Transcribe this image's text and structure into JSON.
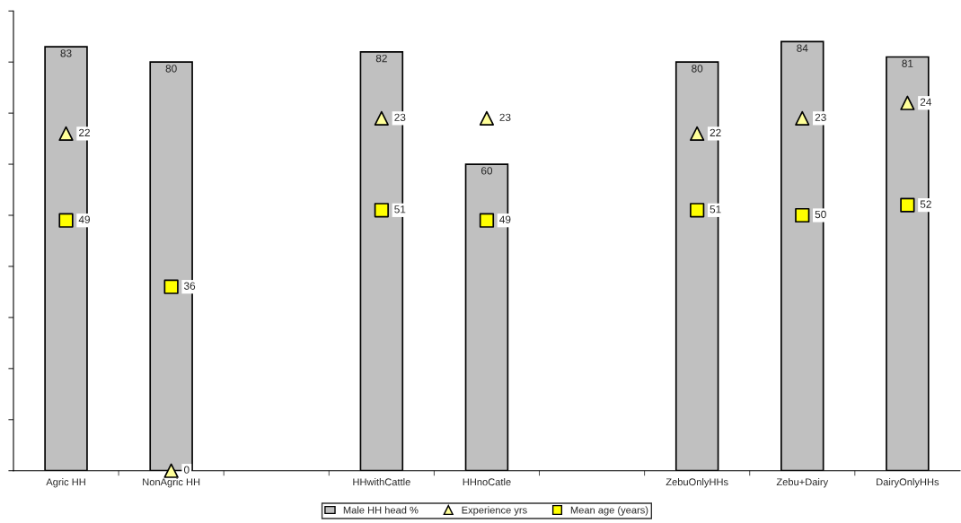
{
  "chart_data": {
    "type": "bar",
    "categories": [
      "Agric HH",
      "NonAgric HH",
      null,
      "HHwithCattle",
      "HHnoCatle",
      null,
      "ZebuOnlyHHs",
      "Zebu+Dairy",
      "DairyOnlyHHs"
    ],
    "series": [
      {
        "name": "Male HH head %",
        "color": "#c0c0c0",
        "values": [
          83,
          80,
          null,
          82,
          60,
          null,
          80,
          84,
          81
        ]
      },
      {
        "name": "Experience yrs",
        "type": "scatter",
        "marker": "triangle",
        "axis": "y2",
        "color": "#ffff99",
        "values": [
          22,
          0,
          null,
          23,
          23,
          null,
          22,
          23,
          24
        ]
      },
      {
        "name": "Mean age (years)",
        "type": "scatter",
        "marker": "square",
        "color": "#ffff00",
        "values": [
          49,
          36,
          null,
          51,
          49,
          null,
          51,
          50,
          52
        ]
      }
    ],
    "ylim": [
      0,
      90
    ],
    "yticks": [
      {
        "value": 0,
        "label": null
      },
      {
        "value": 10,
        "label": null
      },
      {
        "value": 20,
        "label": null
      },
      {
        "value": 30,
        "label": null
      },
      {
        "value": 40,
        "label": null
      },
      {
        "value": 50,
        "label": null
      },
      {
        "value": 60,
        "label": null
      },
      {
        "value": 70,
        "label": null
      },
      {
        "value": 80,
        "label": null
      },
      {
        "value": 90,
        "label": null
      }
    ],
    "y2lim": [
      0,
      30
    ],
    "tick_labels": "x",
    "data_labels": true,
    "grid": false,
    "legend": "bottom"
  }
}
